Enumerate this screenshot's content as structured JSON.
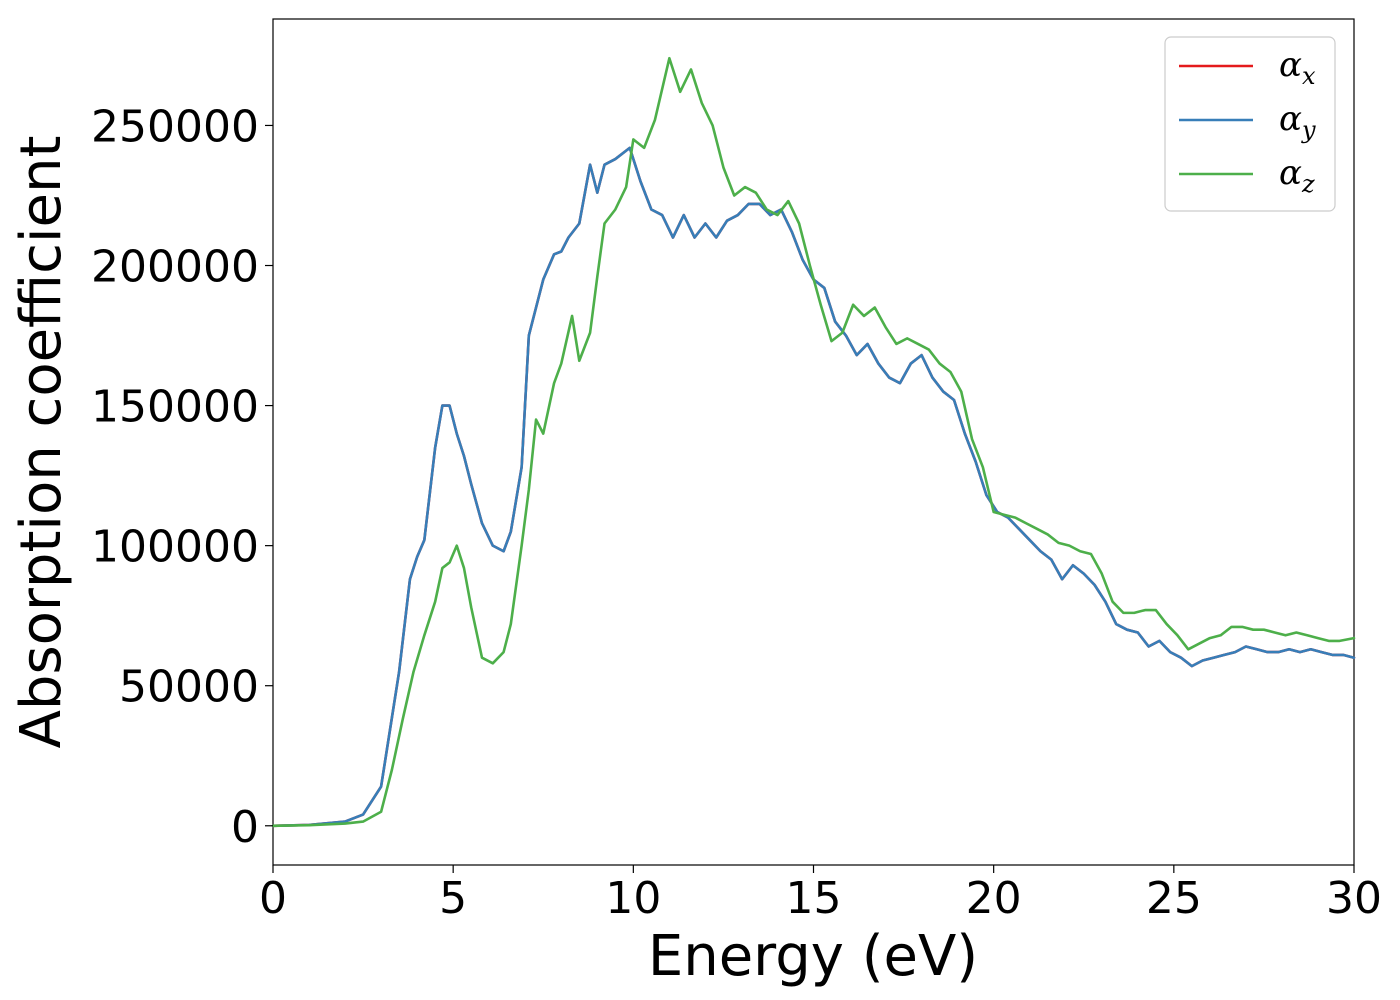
{
  "chart_data": {
    "type": "line",
    "title": "",
    "xlabel": "Energy (eV)",
    "ylabel": "Absorption coefficient",
    "xlim": [
      0,
      30
    ],
    "ylim": [
      -14000,
      288000
    ],
    "xticks": [
      0,
      5,
      10,
      15,
      20,
      25,
      30
    ],
    "yticks": [
      0,
      50000,
      100000,
      150000,
      200000,
      250000
    ],
    "xtick_labels": [
      "0",
      "5",
      "10",
      "15",
      "20",
      "25",
      "30"
    ],
    "ytick_labels": [
      "0",
      "50000",
      "100000",
      "150000",
      "200000",
      "250000"
    ],
    "grid": false,
    "legend_position": "top-right",
    "series": [
      {
        "name": "α_x",
        "legend_symbol": "α",
        "legend_sub": "x",
        "color": "#e41a1c",
        "x": [
          0,
          1,
          2,
          2.5,
          3,
          3.5,
          3.8,
          4.0,
          4.2,
          4.5,
          4.7,
          4.9,
          5.1,
          5.3,
          5.5,
          5.8,
          6.1,
          6.4,
          6.6,
          6.9,
          7.1,
          7.3,
          7.5,
          7.8,
          8.0,
          8.2,
          8.5,
          8.8,
          9.0,
          9.2,
          9.5,
          9.9,
          10.2,
          10.5,
          10.8,
          11.1,
          11.4,
          11.7,
          12.0,
          12.3,
          12.6,
          12.9,
          13.2,
          13.5,
          13.8,
          14.1,
          14.4,
          14.7,
          15.0,
          15.3,
          15.6,
          15.9,
          16.2,
          16.5,
          16.8,
          17.1,
          17.4,
          17.7,
          18.0,
          18.3,
          18.6,
          18.9,
          19.2,
          19.5,
          19.8,
          20.1,
          20.4,
          20.7,
          21.0,
          21.3,
          21.6,
          21.9,
          22.2,
          22.5,
          22.8,
          23.1,
          23.4,
          23.7,
          24.0,
          24.3,
          24.6,
          24.9,
          25.2,
          25.5,
          25.8,
          26.1,
          26.4,
          26.7,
          27.0,
          27.3,
          27.6,
          27.9,
          28.2,
          28.5,
          28.8,
          29.1,
          29.4,
          29.7,
          30.0
        ],
        "values": [
          0,
          300,
          1500,
          4000,
          14000,
          55000,
          88000,
          96000,
          102000,
          135000,
          150000,
          150000,
          140000,
          132000,
          122000,
          108000,
          100000,
          98000,
          105000,
          128000,
          175000,
          185000,
          195000,
          204000,
          205000,
          210000,
          215000,
          236000,
          226000,
          236000,
          238000,
          242000,
          230000,
          220000,
          218000,
          210000,
          218000,
          210000,
          215000,
          210000,
          216000,
          218000,
          222000,
          222000,
          218000,
          220000,
          212000,
          202000,
          195000,
          192000,
          180000,
          175000,
          168000,
          172000,
          165000,
          160000,
          158000,
          165000,
          168000,
          160000,
          155000,
          152000,
          140000,
          130000,
          118000,
          112000,
          110000,
          106000,
          102000,
          98000,
          95000,
          88000,
          93000,
          90000,
          86000,
          80000,
          72000,
          70000,
          69000,
          64000,
          66000,
          62000,
          60000,
          57000,
          59000,
          60000,
          61000,
          62000,
          64000,
          63000,
          62000,
          62000,
          63000,
          62000,
          63000,
          62000,
          61000,
          61000,
          60000
        ]
      },
      {
        "name": "α_y",
        "legend_symbol": "α",
        "legend_sub": "y",
        "color": "#377eb8",
        "x": [
          0,
          1,
          2,
          2.5,
          3,
          3.5,
          3.8,
          4.0,
          4.2,
          4.5,
          4.7,
          4.9,
          5.1,
          5.3,
          5.5,
          5.8,
          6.1,
          6.4,
          6.6,
          6.9,
          7.1,
          7.3,
          7.5,
          7.8,
          8.0,
          8.2,
          8.5,
          8.8,
          9.0,
          9.2,
          9.5,
          9.9,
          10.2,
          10.5,
          10.8,
          11.1,
          11.4,
          11.7,
          12.0,
          12.3,
          12.6,
          12.9,
          13.2,
          13.5,
          13.8,
          14.1,
          14.4,
          14.7,
          15.0,
          15.3,
          15.6,
          15.9,
          16.2,
          16.5,
          16.8,
          17.1,
          17.4,
          17.7,
          18.0,
          18.3,
          18.6,
          18.9,
          19.2,
          19.5,
          19.8,
          20.1,
          20.4,
          20.7,
          21.0,
          21.3,
          21.6,
          21.9,
          22.2,
          22.5,
          22.8,
          23.1,
          23.4,
          23.7,
          24.0,
          24.3,
          24.6,
          24.9,
          25.2,
          25.5,
          25.8,
          26.1,
          26.4,
          26.7,
          27.0,
          27.3,
          27.6,
          27.9,
          28.2,
          28.5,
          28.8,
          29.1,
          29.4,
          29.7,
          30.0
        ],
        "values": [
          0,
          300,
          1500,
          4000,
          14000,
          55000,
          88000,
          96000,
          102000,
          135000,
          150000,
          150000,
          140000,
          132000,
          122000,
          108000,
          100000,
          98000,
          105000,
          128000,
          175000,
          185000,
          195000,
          204000,
          205000,
          210000,
          215000,
          236000,
          226000,
          236000,
          238000,
          242000,
          230000,
          220000,
          218000,
          210000,
          218000,
          210000,
          215000,
          210000,
          216000,
          218000,
          222000,
          222000,
          218000,
          220000,
          212000,
          202000,
          195000,
          192000,
          180000,
          175000,
          168000,
          172000,
          165000,
          160000,
          158000,
          165000,
          168000,
          160000,
          155000,
          152000,
          140000,
          130000,
          118000,
          112000,
          110000,
          106000,
          102000,
          98000,
          95000,
          88000,
          93000,
          90000,
          86000,
          80000,
          72000,
          70000,
          69000,
          64000,
          66000,
          62000,
          60000,
          57000,
          59000,
          60000,
          61000,
          62000,
          64000,
          63000,
          62000,
          62000,
          63000,
          62000,
          63000,
          62000,
          61000,
          61000,
          60000
        ]
      },
      {
        "name": "α_z",
        "legend_symbol": "α",
        "legend_sub": "z",
        "color": "#4daf4a",
        "x": [
          0,
          1,
          2,
          2.5,
          3,
          3.3,
          3.6,
          3.9,
          4.2,
          4.5,
          4.7,
          4.9,
          5.1,
          5.3,
          5.5,
          5.8,
          6.1,
          6.4,
          6.6,
          6.9,
          7.1,
          7.3,
          7.5,
          7.8,
          8.0,
          8.3,
          8.5,
          8.8,
          9.0,
          9.2,
          9.5,
          9.8,
          10.0,
          10.3,
          10.6,
          11.0,
          11.3,
          11.6,
          11.9,
          12.2,
          12.5,
          12.8,
          13.1,
          13.4,
          13.7,
          14.0,
          14.3,
          14.6,
          14.9,
          15.2,
          15.5,
          15.8,
          16.1,
          16.4,
          16.7,
          17.0,
          17.3,
          17.6,
          17.9,
          18.2,
          18.5,
          18.8,
          19.1,
          19.4,
          19.7,
          20.0,
          20.3,
          20.6,
          20.9,
          21.2,
          21.5,
          21.8,
          22.1,
          22.4,
          22.7,
          23.0,
          23.3,
          23.6,
          23.9,
          24.2,
          24.5,
          24.8,
          25.1,
          25.4,
          25.7,
          26.0,
          26.3,
          26.6,
          26.9,
          27.2,
          27.5,
          27.8,
          28.1,
          28.4,
          28.7,
          29.0,
          29.3,
          29.6,
          30.0
        ],
        "values": [
          0,
          200,
          800,
          1500,
          5000,
          20000,
          38000,
          55000,
          68000,
          80000,
          92000,
          94000,
          100000,
          92000,
          78000,
          60000,
          58000,
          62000,
          72000,
          100000,
          120000,
          145000,
          140000,
          158000,
          165000,
          182000,
          166000,
          176000,
          196000,
          215000,
          220000,
          228000,
          245000,
          242000,
          252000,
          274000,
          262000,
          270000,
          258000,
          250000,
          235000,
          225000,
          228000,
          226000,
          220000,
          218000,
          223000,
          215000,
          200000,
          186000,
          173000,
          176000,
          186000,
          182000,
          185000,
          178000,
          172000,
          174000,
          172000,
          170000,
          165000,
          162000,
          155000,
          138000,
          128000,
          112000,
          111000,
          110000,
          108000,
          106000,
          104000,
          101000,
          100000,
          98000,
          97000,
          90000,
          80000,
          76000,
          76000,
          77000,
          77000,
          72000,
          68000,
          63000,
          65000,
          67000,
          68000,
          71000,
          71000,
          70000,
          70000,
          69000,
          68000,
          69000,
          68000,
          67000,
          66000,
          66000,
          67000
        ]
      }
    ]
  }
}
